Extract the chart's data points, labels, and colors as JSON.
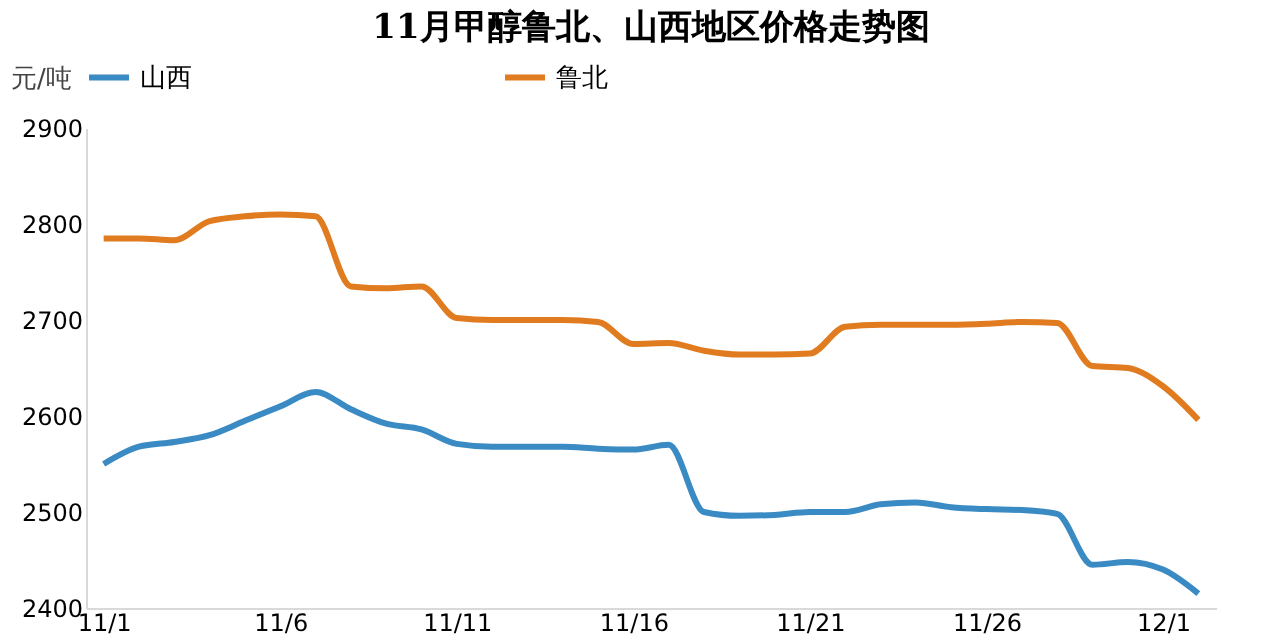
{
  "chart_data": {
    "type": "line",
    "title": "11月甲醇鲁北、山西地区价格走势图",
    "ylabel": "元/吨",
    "categories": [
      "11/1",
      null,
      null,
      null,
      null,
      "11/6",
      null,
      null,
      null,
      null,
      "11/11",
      null,
      null,
      null,
      null,
      "11/16",
      null,
      null,
      null,
      null,
      "11/21",
      null,
      null,
      null,
      null,
      "11/26",
      null,
      null,
      null,
      null,
      "12/1",
      null
    ],
    "series": [
      {
        "name": "山西",
        "color": "#3a8ac4",
        "values": [
          2550,
          2568,
          2573,
          2580,
          2595,
          2610,
          2625,
          2607,
          2592,
          2586,
          2571,
          2568,
          2568,
          2568,
          2566,
          2565,
          2570,
          2500,
          2496,
          2497,
          2500,
          2500,
          2508,
          2510,
          2505,
          2503,
          2502,
          2498,
          2445,
          2448,
          2440,
          2415
        ]
      },
      {
        "name": "鲁北",
        "color": "#e07b1f",
        "values": [
          2785,
          2785,
          2783,
          2803,
          2808,
          2810,
          2808,
          2735,
          2733,
          2735,
          2702,
          2700,
          2700,
          2700,
          2698,
          2675,
          2676,
          2668,
          2664,
          2664,
          2665,
          2693,
          2695,
          2695,
          2695,
          2696,
          2698,
          2697,
          2652,
          2650,
          2631,
          2596
        ]
      }
    ],
    "ylim": [
      2400,
      2900
    ],
    "yticks": [
      2400,
      2500,
      2600,
      2700,
      2800,
      2900
    ],
    "grid": false,
    "legend": "top",
    "marker": "none",
    "line_style": "solid"
  }
}
